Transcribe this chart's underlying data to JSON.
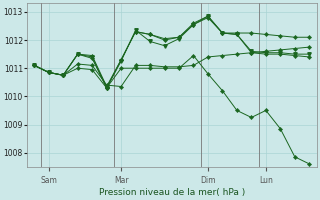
{
  "background_color": "#cce8e8",
  "grid_color": "#aad4d4",
  "line_color": "#1a6620",
  "xlabel": "Pression niveau de la mer( hPa )",
  "ylim": [
    1007.5,
    1013.3
  ],
  "yticks": [
    1008,
    1009,
    1010,
    1011,
    1012,
    1013
  ],
  "xtick_labels": [
    "Sam",
    "Mar",
    "Dim",
    "Lun"
  ],
  "num_points": 20,
  "s1_x": [
    0,
    1,
    2,
    3,
    4,
    5,
    6,
    7,
    8,
    9,
    10,
    11,
    12,
    13,
    14,
    15,
    16,
    17,
    18,
    19
  ],
  "s1_y": [
    1011.1,
    1010.85,
    1010.75,
    1011.15,
    1011.1,
    1010.4,
    1010.35,
    1011.1,
    1011.1,
    1011.05,
    1011.05,
    1011.1,
    1011.4,
    1011.45,
    1011.5,
    1011.55,
    1011.6,
    1011.65,
    1011.7,
    1011.75
  ],
  "s2_x": [
    0,
    1,
    2,
    3,
    4,
    5,
    6,
    7,
    8,
    9,
    10,
    11,
    12,
    13,
    14,
    15,
    16,
    17,
    18,
    19
  ],
  "s2_y": [
    1011.1,
    1010.85,
    1010.75,
    1011.5,
    1011.45,
    1010.35,
    1011.3,
    1012.3,
    1012.2,
    1012.05,
    1012.1,
    1012.55,
    1012.8,
    1012.25,
    1012.25,
    1012.25,
    1012.2,
    1012.15,
    1012.1,
    1012.1
  ],
  "s3_x": [
    0,
    1,
    2,
    3,
    4,
    5,
    6,
    7,
    8,
    9,
    10,
    11,
    12,
    13,
    14,
    15,
    16,
    17,
    18,
    19
  ],
  "s3_y": [
    1011.1,
    1010.85,
    1010.75,
    1011.5,
    1011.4,
    1010.3,
    1011.25,
    1012.35,
    1011.95,
    1011.8,
    1012.05,
    1012.55,
    1012.85,
    1012.25,
    1012.2,
    1011.6,
    1011.55,
    1011.55,
    1011.5,
    1011.5
  ],
  "s4_x": [
    0,
    1,
    2,
    3,
    4,
    5,
    6,
    7,
    8,
    9,
    10,
    11,
    12,
    13,
    14,
    15,
    16,
    17,
    18,
    19
  ],
  "s4_y": [
    1011.1,
    1010.85,
    1010.75,
    1011.5,
    1011.35,
    1010.3,
    1011.3,
    1012.3,
    1012.2,
    1012.0,
    1012.1,
    1012.6,
    1012.85,
    1012.25,
    1012.2,
    1011.55,
    1011.5,
    1011.5,
    1011.45,
    1011.4
  ],
  "s5_x": [
    0,
    1,
    2,
    3,
    4,
    5,
    6,
    7,
    8,
    9,
    10,
    11,
    12,
    13,
    14,
    15,
    16,
    17,
    18,
    19
  ],
  "s5_y": [
    1011.1,
    1010.85,
    1010.75,
    1011.0,
    1010.95,
    1010.3,
    1011.0,
    1011.0,
    1011.0,
    1011.0,
    1011.0,
    1011.45,
    1010.8,
    1010.2,
    1009.5,
    1009.25,
    1009.5,
    1008.85,
    1007.85,
    1007.6
  ]
}
